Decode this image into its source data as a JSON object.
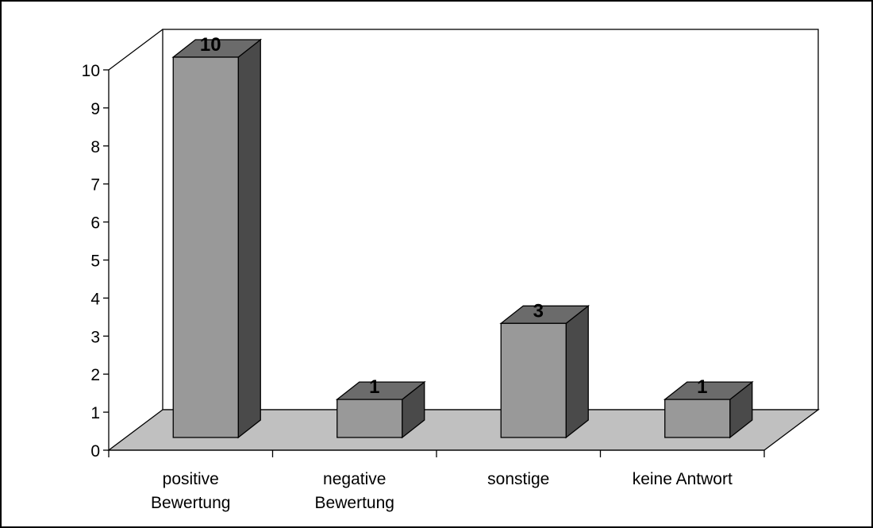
{
  "chart_data": {
    "type": "bar",
    "title": "",
    "xlabel": "",
    "ylabel": "",
    "categories": [
      [
        "positive",
        "Bewertung"
      ],
      [
        "negative",
        "Bewertung"
      ],
      [
        "sonstige"
      ],
      [
        "keine Antwort"
      ]
    ],
    "values": [
      10,
      1,
      3,
      1
    ],
    "data_labels": [
      "10",
      "1",
      "3",
      "1"
    ],
    "ylim": [
      0,
      10
    ],
    "yticks": [
      "0",
      "1",
      "2",
      "3",
      "4",
      "5",
      "6",
      "7",
      "8",
      "9",
      "10"
    ],
    "grid": false,
    "style": "3d-column",
    "colors": {
      "bar_front": "#999999",
      "bar_top": "#6b6b6b",
      "bar_side": "#4a4a4a",
      "floor": "#c0c0c0",
      "outline": "#000000"
    }
  }
}
